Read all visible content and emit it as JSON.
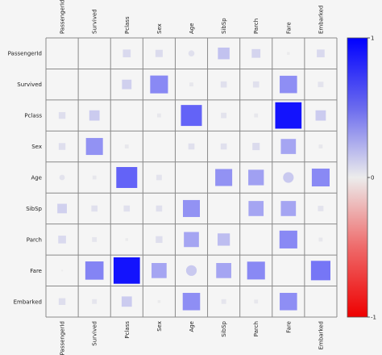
{
  "chart_data": {
    "type": "heatmap",
    "title": "",
    "xlabel": "",
    "ylabel": "",
    "variables": [
      "PassengerId",
      "Survived",
      "Pclass",
      "Sex",
      "Age",
      "SibSp",
      "Parch",
      "Fare",
      "Embarked"
    ],
    "vlim": [
      -1,
      1
    ],
    "colorbar_ticks": [
      "1",
      "0",
      "-1"
    ],
    "cells": [
      {
        "row": 0,
        "col": 2,
        "shape": "square",
        "value": 0.08
      },
      {
        "row": 0,
        "col": 3,
        "shape": "square",
        "value": 0.07
      },
      {
        "row": 0,
        "col": 4,
        "shape": "circle",
        "value": 0.05
      },
      {
        "row": 0,
        "col": 5,
        "shape": "square",
        "value": 0.18
      },
      {
        "row": 0,
        "col": 6,
        "shape": "square",
        "value": 0.1
      },
      {
        "row": 0,
        "col": 7,
        "shape": "square",
        "value": 0.01
      },
      {
        "row": 0,
        "col": 8,
        "shape": "square",
        "value": 0.08
      },
      {
        "row": 1,
        "col": 2,
        "shape": "square",
        "value": 0.12
      },
      {
        "row": 1,
        "col": 3,
        "shape": "square",
        "value": 0.42
      },
      {
        "row": 1,
        "col": 4,
        "shape": "square",
        "value": 0.02
      },
      {
        "row": 1,
        "col": 5,
        "shape": "square",
        "value": 0.05
      },
      {
        "row": 1,
        "col": 6,
        "shape": "square",
        "value": 0.05
      },
      {
        "row": 1,
        "col": 7,
        "shape": "square",
        "value": 0.4
      },
      {
        "row": 1,
        "col": 8,
        "shape": "square",
        "value": 0.04
      },
      {
        "row": 2,
        "col": 0,
        "shape": "square",
        "value": 0.06
      },
      {
        "row": 2,
        "col": 1,
        "shape": "square",
        "value": 0.14
      },
      {
        "row": 2,
        "col": 3,
        "shape": "square",
        "value": 0.02
      },
      {
        "row": 2,
        "col": 4,
        "shape": "square",
        "value": 0.58
      },
      {
        "row": 2,
        "col": 5,
        "shape": "square",
        "value": 0.04
      },
      {
        "row": 2,
        "col": 6,
        "shape": "square",
        "value": 0.02
      },
      {
        "row": 2,
        "col": 7,
        "shape": "square",
        "value": 0.92
      },
      {
        "row": 2,
        "col": 8,
        "shape": "square",
        "value": 0.14
      },
      {
        "row": 3,
        "col": 0,
        "shape": "square",
        "value": 0.06
      },
      {
        "row": 3,
        "col": 1,
        "shape": "square",
        "value": 0.38
      },
      {
        "row": 3,
        "col": 2,
        "shape": "square",
        "value": 0.02
      },
      {
        "row": 3,
        "col": 4,
        "shape": "square",
        "value": 0.05
      },
      {
        "row": 3,
        "col": 5,
        "shape": "square",
        "value": 0.05
      },
      {
        "row": 3,
        "col": 6,
        "shape": "square",
        "value": 0.07
      },
      {
        "row": 3,
        "col": 7,
        "shape": "square",
        "value": 0.3
      },
      {
        "row": 3,
        "col": 8,
        "shape": "square",
        "value": 0.02
      },
      {
        "row": 4,
        "col": 0,
        "shape": "circle",
        "value": 0.04
      },
      {
        "row": 4,
        "col": 1,
        "shape": "square",
        "value": 0.02
      },
      {
        "row": 4,
        "col": 2,
        "shape": "square",
        "value": 0.58
      },
      {
        "row": 4,
        "col": 3,
        "shape": "square",
        "value": 0.04
      },
      {
        "row": 4,
        "col": 5,
        "shape": "square",
        "value": 0.38
      },
      {
        "row": 4,
        "col": 6,
        "shape": "square",
        "value": 0.32
      },
      {
        "row": 4,
        "col": 7,
        "shape": "circle",
        "value": 0.15
      },
      {
        "row": 4,
        "col": 8,
        "shape": "square",
        "value": 0.42
      },
      {
        "row": 5,
        "col": 0,
        "shape": "square",
        "value": 0.12
      },
      {
        "row": 5,
        "col": 1,
        "shape": "square",
        "value": 0.05
      },
      {
        "row": 5,
        "col": 2,
        "shape": "square",
        "value": 0.05
      },
      {
        "row": 5,
        "col": 3,
        "shape": "square",
        "value": 0.05
      },
      {
        "row": 5,
        "col": 4,
        "shape": "square",
        "value": 0.38
      },
      {
        "row": 5,
        "col": 6,
        "shape": "square",
        "value": 0.3
      },
      {
        "row": 5,
        "col": 7,
        "shape": "square",
        "value": 0.3
      },
      {
        "row": 5,
        "col": 8,
        "shape": "square",
        "value": 0.04
      },
      {
        "row": 6,
        "col": 0,
        "shape": "square",
        "value": 0.08
      },
      {
        "row": 6,
        "col": 1,
        "shape": "square",
        "value": 0.03
      },
      {
        "row": 6,
        "col": 2,
        "shape": "square",
        "value": 0.01
      },
      {
        "row": 6,
        "col": 3,
        "shape": "square",
        "value": 0.06
      },
      {
        "row": 6,
        "col": 4,
        "shape": "square",
        "value": 0.3
      },
      {
        "row": 6,
        "col": 5,
        "shape": "square",
        "value": 0.2
      },
      {
        "row": 6,
        "col": 7,
        "shape": "square",
        "value": 0.42
      },
      {
        "row": 6,
        "col": 8,
        "shape": "square",
        "value": 0.02
      },
      {
        "row": 7,
        "col": 0,
        "shape": "circle",
        "value": 0.004
      },
      {
        "row": 7,
        "col": 1,
        "shape": "square",
        "value": 0.44
      },
      {
        "row": 7,
        "col": 2,
        "shape": "square",
        "value": 0.92
      },
      {
        "row": 7,
        "col": 3,
        "shape": "square",
        "value": 0.3
      },
      {
        "row": 7,
        "col": 4,
        "shape": "circle",
        "value": 0.15
      },
      {
        "row": 7,
        "col": 5,
        "shape": "square",
        "value": 0.3
      },
      {
        "row": 7,
        "col": 6,
        "shape": "square",
        "value": 0.42
      },
      {
        "row": 7,
        "col": 8,
        "shape": "square",
        "value": 0.5
      },
      {
        "row": 8,
        "col": 0,
        "shape": "square",
        "value": 0.06
      },
      {
        "row": 8,
        "col": 1,
        "shape": "square",
        "value": 0.03
      },
      {
        "row": 8,
        "col": 2,
        "shape": "square",
        "value": 0.14
      },
      {
        "row": 8,
        "col": 3,
        "shape": "square",
        "value": 0.01
      },
      {
        "row": 8,
        "col": 4,
        "shape": "square",
        "value": 0.4
      },
      {
        "row": 8,
        "col": 5,
        "shape": "square",
        "value": 0.03
      },
      {
        "row": 8,
        "col": 6,
        "shape": "square",
        "value": 0.02
      },
      {
        "row": 8,
        "col": 7,
        "shape": "square",
        "value": 0.4
      }
    ],
    "colors": {
      "high": "#0000ff",
      "mid": "#ececec",
      "low": "#ee0000",
      "grid": "#8a8a8a",
      "cell_bg": "#f5f5f5"
    }
  }
}
